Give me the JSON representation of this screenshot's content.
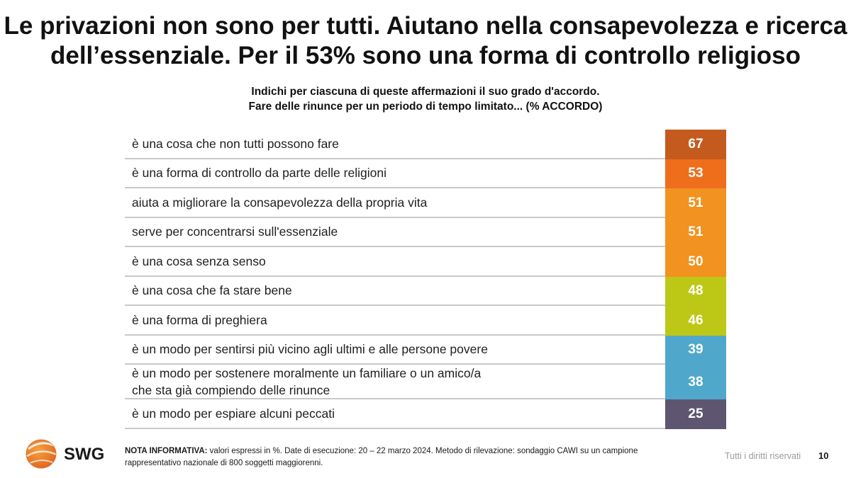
{
  "header": {
    "title_line1": "Le privazioni non sono per tutti. Aiutano nella consapevolezza e ricerca",
    "title_line2": "dell’essenziale. Per il 53% sono una forma di controllo religioso",
    "subtitle_line1": "Indichi per ciascuna di queste affermazioni il suo grado d'accordo.",
    "subtitle_line2": "Fare delle rinunce per un periodo di tempo limitato... (% ACCORDO)"
  },
  "chart_data": {
    "type": "table",
    "title": "Le privazioni non sono per tutti. Aiutano nella consapevolezza e ricerca dell’essenziale. Per il 53% sono una forma di controllo religioso",
    "subtitle": "Indichi per ciascuna di queste affermazioni il suo grado d'accordo. Fare delle rinunce per un periodo di tempo limitato... (% ACCORDO)",
    "rows": [
      {
        "lines": [
          "è una cosa che non tutti possono fare"
        ],
        "value": 67,
        "color": "#C55A1E"
      },
      {
        "lines": [
          "è una forma di controllo da parte delle religioni"
        ],
        "value": 53,
        "color": "#EE6E1C"
      },
      {
        "lines": [
          "aiuta a migliorare la consapevolezza della propria vita"
        ],
        "value": 51,
        "color": "#F29220"
      },
      {
        "lines": [
          "serve per concentrarsi sull'essenziale"
        ],
        "value": 51,
        "color": "#F29220"
      },
      {
        "lines": [
          "è una cosa senza senso"
        ],
        "value": 50,
        "color": "#F29220"
      },
      {
        "lines": [
          "è una cosa che fa stare bene"
        ],
        "value": 48,
        "color": "#BDC816"
      },
      {
        "lines": [
          "è una forma di preghiera"
        ],
        "value": 46,
        "color": "#BDC816"
      },
      {
        "lines": [
          "è un modo per sentirsi più vicino agli ultimi e alle persone povere"
        ],
        "value": 39,
        "color": "#4FA8CB"
      },
      {
        "lines": [
          "è un modo per sostenere moralmente un familiare o un amico/a",
          "che sta già compiendo delle rinunce"
        ],
        "value": 38,
        "color": "#4FA8CB"
      },
      {
        "lines": [
          "è un modo per espiare alcuni peccati"
        ],
        "value": 25,
        "color": "#5E5670"
      }
    ]
  },
  "footer": {
    "logo_text": "SWG",
    "note_label": "NOTA INFORMATIVA:",
    "note_text": " valori espressi in %. Date di esecuzione: 20 – 22 marzo 2024. Metodo di rilevazione: sondaggio CAWI su un campione rappresentativo nazionale di 800 soggetti maggiorenni.",
    "rights": "Tutti i diritti riservati",
    "page_number": "10"
  },
  "colors": {
    "logo_orange": "#F07A1A",
    "logo_orange_dark": "#D8601A"
  }
}
